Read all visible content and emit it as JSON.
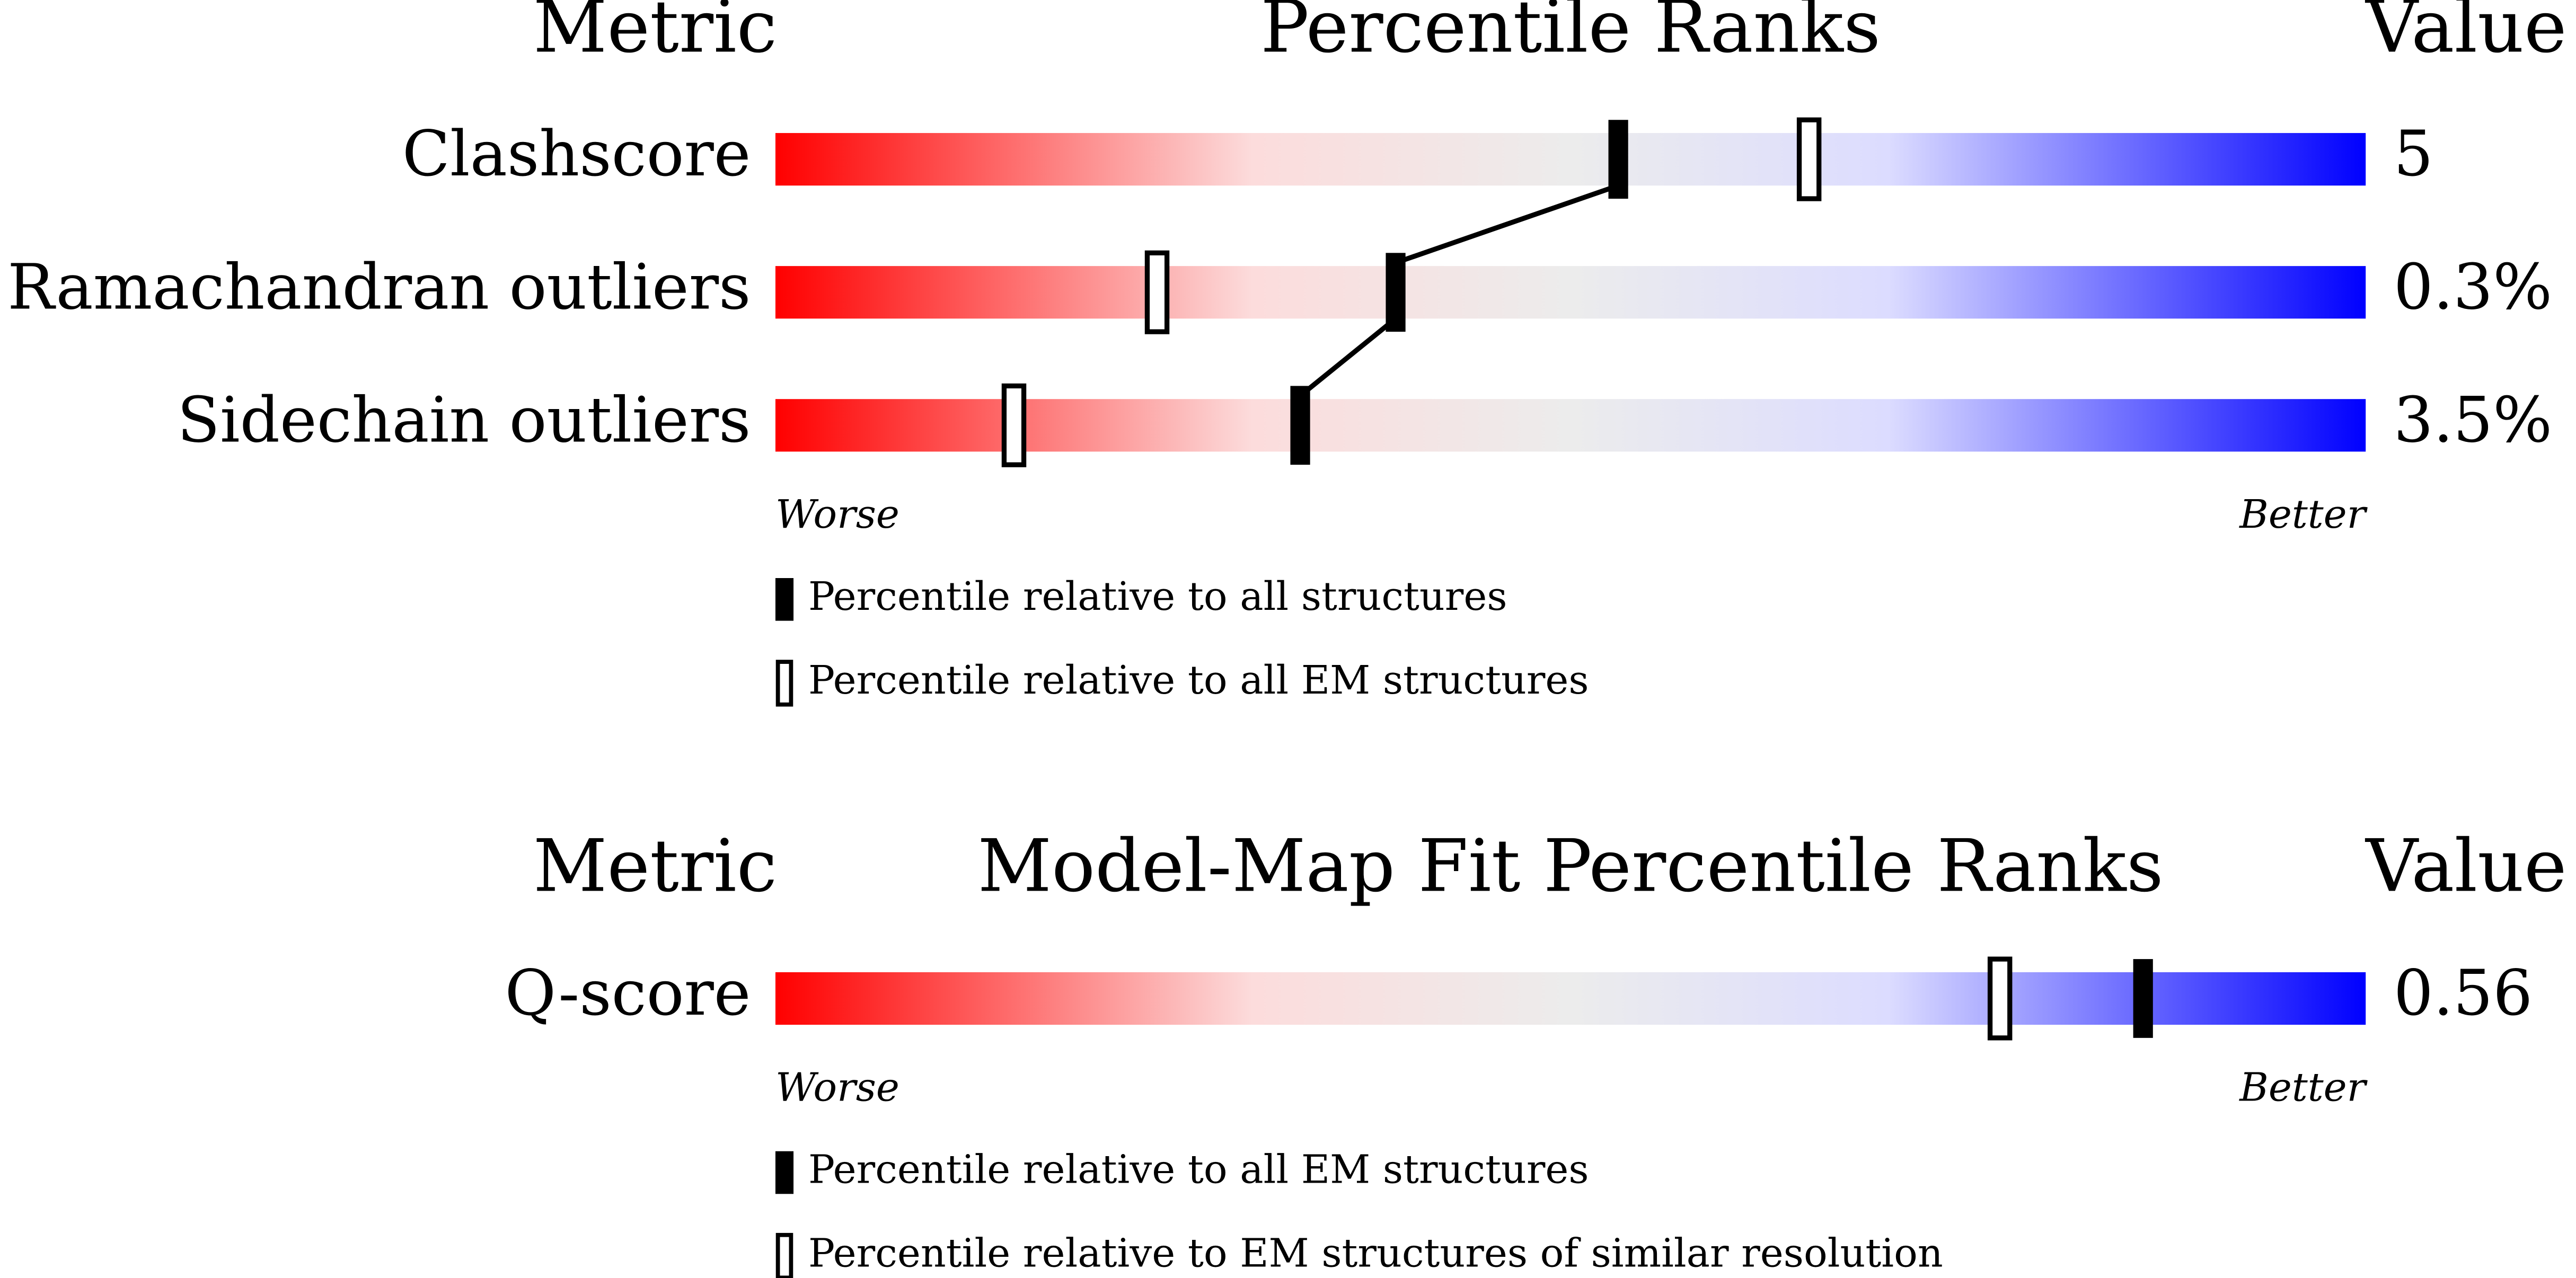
{
  "panels": [
    {
      "headers": {
        "metric": "Metric",
        "title": "Percentile Ranks",
        "value": "Value"
      },
      "xlim": [
        0,
        100
      ],
      "rows": [
        {
          "metric": "Clashscore",
          "value": "5",
          "ranks": [
            53,
            65
          ]
        },
        {
          "metric": "Ramachandran outliers",
          "value": "0.3%",
          "ranks": [
            39,
            24
          ]
        },
        {
          "metric": "Sidechain outliers",
          "value": "3.5%",
          "ranks": [
            33,
            15
          ]
        }
      ],
      "scale_labels": {
        "worse": "Worse",
        "better": "Better"
      },
      "legend": [
        "Percentile relative to all structures",
        "Percentile relative to all EM structures"
      ]
    },
    {
      "headers": {
        "metric": "Metric",
        "title": "Model-Map Fit Percentile Ranks",
        "value": "Value"
      },
      "xlim": [
        0,
        100
      ],
      "rows": [
        {
          "metric": "Q-score",
          "value": "0.56",
          "ranks": [
            86,
            77
          ]
        }
      ],
      "scale_labels": {
        "worse": "Worse",
        "better": "Better"
      },
      "legend": [
        "Percentile relative to all EM structures",
        "Percentile relative to EM structures of similar resolution"
      ]
    }
  ]
}
